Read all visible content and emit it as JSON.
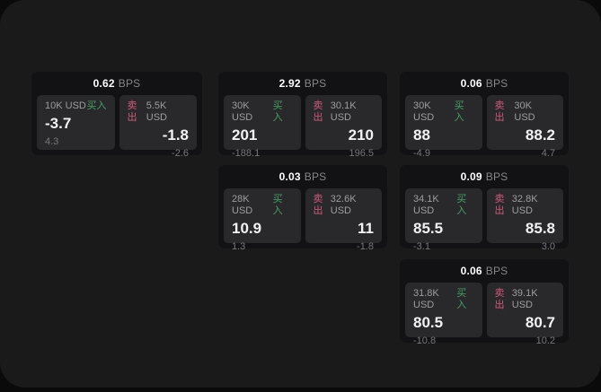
{
  "labels": {
    "bps": "BPS",
    "buy": "买入",
    "sell": "卖出"
  },
  "colors": {
    "page_bg": "#0a0a0a",
    "panel_bg": "#1a1a1b",
    "card_bg": "#121214",
    "side_bg": "#29292b",
    "buy_accent": "#45a066",
    "sell_accent": "#d15a77"
  },
  "cards": [
    {
      "bps": "0.62",
      "buy": {
        "amount": "10K USD",
        "main": "-3.7",
        "sub": "4.3"
      },
      "sell": {
        "amount": "5.5K USD",
        "main": "-1.8",
        "sub": "-2.6"
      }
    },
    {
      "bps": "2.92",
      "buy": {
        "amount": "30K USD",
        "main": "201",
        "sub": "-188.1"
      },
      "sell": {
        "amount": "30.1K USD",
        "main": "210",
        "sub": "196.5"
      }
    },
    {
      "bps": "0.06",
      "buy": {
        "amount": "30K USD",
        "main": "88",
        "sub": "-4.9"
      },
      "sell": {
        "amount": "30K USD",
        "main": "88.2",
        "sub": "4.7"
      }
    },
    {
      "bps": "0.03",
      "buy": {
        "amount": "28K USD",
        "main": "10.9",
        "sub": "1.3"
      },
      "sell": {
        "amount": "32.6K USD",
        "main": "11",
        "sub": "-1.8"
      }
    },
    {
      "bps": "0.09",
      "buy": {
        "amount": "34.1K USD",
        "main": "85.5",
        "sub": "-3.1"
      },
      "sell": {
        "amount": "32.8K USD",
        "main": "85.8",
        "sub": "3.0"
      }
    },
    {
      "bps": "0.06",
      "buy": {
        "amount": "31.8K USD",
        "main": "80.5",
        "sub": "-10.8"
      },
      "sell": {
        "amount": "39.1K USD",
        "main": "80.7",
        "sub": "10.2"
      }
    }
  ]
}
